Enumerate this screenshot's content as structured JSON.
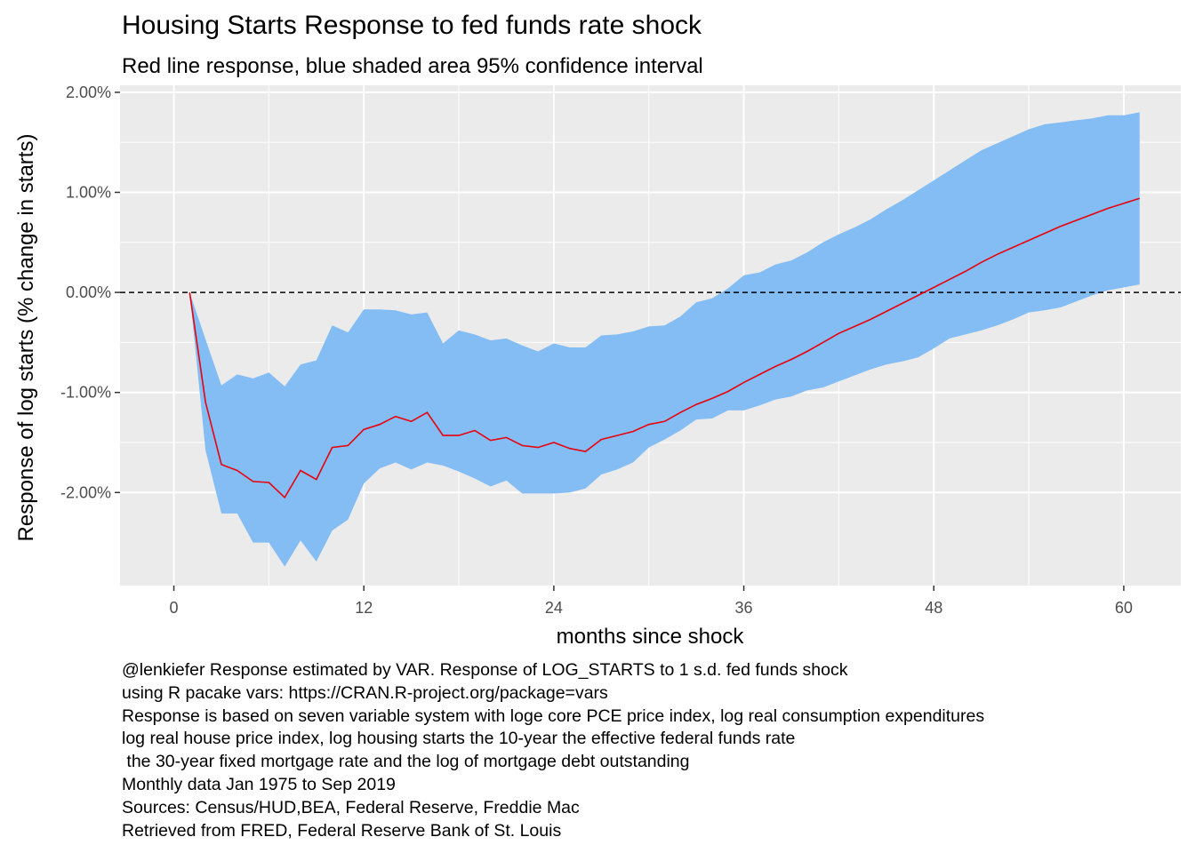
{
  "chart_data": {
    "type": "line",
    "title": "Housing Starts Response to fed funds rate shock",
    "subtitle": "Red line response, blue shaded area 95% confidence interval",
    "xlabel": "months since shock",
    "ylabel": "Response of log starts (% change in starts)",
    "xlim": [
      -3.4,
      63.6
    ],
    "ylim": [
      -2.93,
      2.07
    ],
    "x_ticks": [
      0,
      12,
      24,
      36,
      48,
      60
    ],
    "x_tick_labels": [
      "0",
      "12",
      "24",
      "36",
      "48",
      "60"
    ],
    "y_ticks": [
      -2,
      -1,
      0,
      1,
      2
    ],
    "y_tick_labels": [
      "-2.00%",
      "-1.00%",
      "0.00%",
      "1.00%",
      "2.00%"
    ],
    "reference_line": {
      "y": 0,
      "style": "dashed"
    },
    "grid": true,
    "x": [
      1,
      2,
      3,
      4,
      5,
      6,
      7,
      8,
      9,
      10,
      11,
      12,
      13,
      14,
      15,
      16,
      17,
      18,
      19,
      20,
      21,
      22,
      23,
      24,
      25,
      26,
      27,
      28,
      29,
      30,
      31,
      32,
      33,
      34,
      35,
      36,
      37,
      38,
      39,
      40,
      41,
      42,
      43,
      44,
      45,
      46,
      47,
      48,
      49,
      50,
      51,
      52,
      53,
      54,
      55,
      56,
      57,
      58,
      59,
      60,
      61
    ],
    "series": [
      {
        "color": "#e8000b",
        "values": [
          0.0,
          -1.1,
          -1.72,
          -1.78,
          -1.89,
          -1.9,
          -2.05,
          -1.78,
          -1.87,
          -1.55,
          -1.53,
          -1.37,
          -1.32,
          -1.24,
          -1.29,
          -1.2,
          -1.43,
          -1.43,
          -1.38,
          -1.48,
          -1.45,
          -1.53,
          -1.55,
          -1.5,
          -1.56,
          -1.59,
          -1.47,
          -1.43,
          -1.39,
          -1.32,
          -1.29,
          -1.2,
          -1.12,
          -1.06,
          -0.99,
          -0.9,
          -0.82,
          -0.74,
          -0.67,
          -0.59,
          -0.5,
          -0.41,
          -0.34,
          -0.27,
          -0.19,
          -0.11,
          -0.03,
          0.05,
          0.13,
          0.21,
          0.3,
          0.38,
          0.45,
          0.52,
          0.59,
          0.66,
          0.72,
          0.78,
          0.84,
          0.89,
          0.94
        ]
      }
    ],
    "confidence_interval": {
      "color": "#84bcf4",
      "lower": [
        0.0,
        -1.58,
        -2.21,
        -2.21,
        -2.5,
        -2.5,
        -2.74,
        -2.48,
        -2.69,
        -2.38,
        -2.27,
        -1.91,
        -1.76,
        -1.7,
        -1.77,
        -1.7,
        -1.73,
        -1.79,
        -1.86,
        -1.94,
        -1.88,
        -2.01,
        -2.01,
        -2.01,
        -2.0,
        -1.96,
        -1.82,
        -1.77,
        -1.7,
        -1.55,
        -1.47,
        -1.38,
        -1.27,
        -1.26,
        -1.18,
        -1.18,
        -1.13,
        -1.07,
        -1.04,
        -0.98,
        -0.95,
        -0.89,
        -0.83,
        -0.77,
        -0.72,
        -0.69,
        -0.65,
        -0.56,
        -0.46,
        -0.42,
        -0.38,
        -0.33,
        -0.27,
        -0.2,
        -0.18,
        -0.15,
        -0.09,
        -0.03,
        0.02,
        0.05,
        0.08
      ],
      "upper": [
        0.0,
        -0.47,
        -0.93,
        -0.82,
        -0.86,
        -0.8,
        -0.94,
        -0.72,
        -0.68,
        -0.33,
        -0.4,
        -0.17,
        -0.17,
        -0.18,
        -0.22,
        -0.2,
        -0.51,
        -0.38,
        -0.42,
        -0.48,
        -0.46,
        -0.53,
        -0.59,
        -0.51,
        -0.55,
        -0.55,
        -0.43,
        -0.42,
        -0.39,
        -0.34,
        -0.33,
        -0.24,
        -0.1,
        -0.06,
        0.04,
        0.17,
        0.2,
        0.28,
        0.32,
        0.4,
        0.5,
        0.58,
        0.65,
        0.73,
        0.83,
        0.92,
        1.02,
        1.12,
        1.22,
        1.32,
        1.42,
        1.49,
        1.56,
        1.63,
        1.68,
        1.7,
        1.72,
        1.74,
        1.77,
        1.77,
        1.8
      ]
    }
  },
  "caption": {
    "lines": [
      "@lenkiefer Response estimated by VAR. Response of LOG_STARTS to 1 s.d. fed funds shock",
      "using R pacake vars: https://CRAN.R-project.org/package=vars",
      "Response is based on seven variable system with loge core PCE price index, log real consumption expenditures",
      "log real house price index, log housing starts the 10-year the effective federal funds rate",
      " the 30-year fixed mortgage rate and the log of mortgage debt outstanding",
      "Monthly data Jan 1975 to Sep 2019",
      "Sources: Census/HUD,BEA, Federal Reserve, Freddie Mac",
      "Retrieved from FRED, Federal Reserve Bank of St. Louis"
    ]
  }
}
